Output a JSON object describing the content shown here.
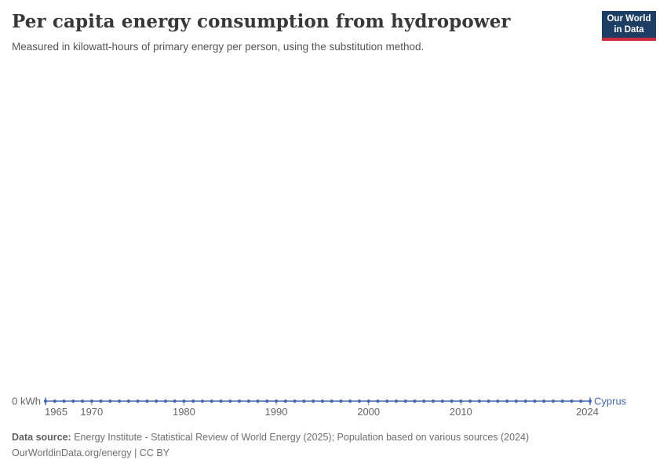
{
  "header": {
    "title": "Per capita energy consumption from hydropower",
    "subtitle": "Measured in kilowatt-hours of primary energy per person, using the substitution method.",
    "logo": {
      "line1": "Our World",
      "line2": "in Data"
    }
  },
  "footer": {
    "data_source_label": "Data source:",
    "data_source_text": " Energy Institute - Statistical Review of World Energy (2025); Population based on various sources (2024)",
    "link_line": "OurWorldinData.org/energy | CC BY"
  },
  "colors": {
    "series_blue": "#4467ad",
    "axis_text": "#666666",
    "tick_mark": "#999999",
    "logo_navy": "#1d3d63",
    "logo_red": "#cb2b3f"
  },
  "chart_data": {
    "type": "line",
    "title": "Per capita energy consumption from hydropower",
    "subtitle": "Measured in kilowatt-hours of primary energy per person, using the substitution method.",
    "entity_label": "Cyprus",
    "unit": "kWh",
    "y_axis_zero_label": "0 kWh",
    "grid": false,
    "legend_position": "inline-end-label",
    "ylim": [
      0,
      0
    ],
    "x_ticks": [
      1965,
      1970,
      1980,
      1990,
      2000,
      2010,
      2024
    ],
    "x": [
      1965,
      1966,
      1967,
      1968,
      1969,
      1970,
      1971,
      1972,
      1973,
      1974,
      1975,
      1976,
      1977,
      1978,
      1979,
      1980,
      1981,
      1982,
      1983,
      1984,
      1985,
      1986,
      1987,
      1988,
      1989,
      1990,
      1991,
      1992,
      1993,
      1994,
      1995,
      1996,
      1997,
      1998,
      1999,
      2000,
      2001,
      2002,
      2003,
      2004,
      2005,
      2006,
      2007,
      2008,
      2009,
      2010,
      2011,
      2012,
      2013,
      2014,
      2015,
      2016,
      2017,
      2018,
      2019,
      2020,
      2021,
      2022,
      2023,
      2024
    ],
    "series": [
      {
        "name": "Cyprus",
        "values": [
          0,
          0,
          0,
          0,
          0,
          0,
          0,
          0,
          0,
          0,
          0,
          0,
          0,
          0,
          0,
          0,
          0,
          0,
          0,
          0,
          0,
          0,
          0,
          0,
          0,
          0,
          0,
          0,
          0,
          0,
          0,
          0,
          0,
          0,
          0,
          0,
          0,
          0,
          0,
          0,
          0,
          0,
          0,
          0,
          0,
          0,
          0,
          0,
          0,
          0,
          0,
          0,
          0,
          0,
          0,
          0,
          0,
          0,
          0,
          0
        ]
      }
    ]
  }
}
